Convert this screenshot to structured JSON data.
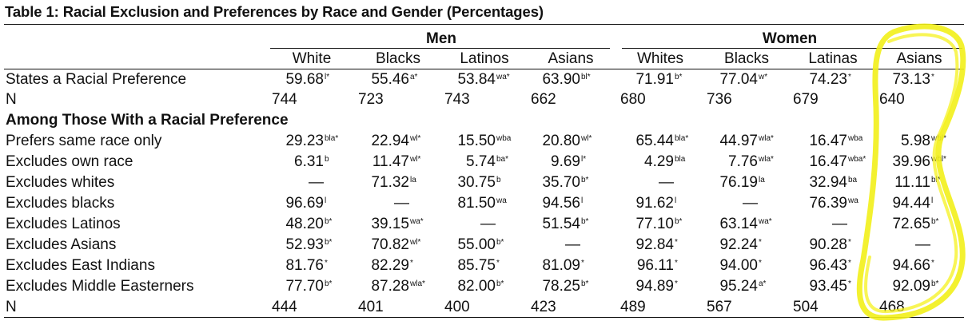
{
  "title": "Table 1: Racial Exclusion and Preferences by Race and Gender (Percentages)",
  "groups": [
    {
      "label": "Men"
    },
    {
      "label": "Women"
    }
  ],
  "columns": [
    "White",
    "Blacks",
    "Latinos",
    "Asians",
    "Whites",
    "Blacks",
    "Latinas",
    "Asians"
  ],
  "section_heading": "Among Those With a Racial Preference",
  "rows": [
    {
      "label": "States a Racial Preference",
      "cells": [
        {
          "v": "59.68",
          "s": "l*"
        },
        {
          "v": "55.46",
          "s": "a*"
        },
        {
          "v": "53.84",
          "s": "wa*"
        },
        {
          "v": "63.90",
          "s": "bl*"
        },
        {
          "v": "71.91",
          "s": "b*"
        },
        {
          "v": "77.04",
          "s": "w*"
        },
        {
          "v": "74.23",
          "s": "*"
        },
        {
          "v": "73.13",
          "s": "*"
        }
      ]
    },
    {
      "label": "N",
      "plain": true,
      "cells": [
        {
          "v": "744",
          "s": ""
        },
        {
          "v": "723",
          "s": ""
        },
        {
          "v": "743",
          "s": ""
        },
        {
          "v": "662",
          "s": ""
        },
        {
          "v": "680",
          "s": ""
        },
        {
          "v": "736",
          "s": ""
        },
        {
          "v": "679",
          "s": ""
        },
        {
          "v": "640",
          "s": ""
        }
      ]
    },
    {
      "label": "Prefers same race only",
      "cells": [
        {
          "v": "29.23",
          "s": "bla*"
        },
        {
          "v": "22.94",
          "s": "wl*"
        },
        {
          "v": "15.50",
          "s": "wba"
        },
        {
          "v": "20.80",
          "s": "wl*"
        },
        {
          "v": "65.44",
          "s": "bla*"
        },
        {
          "v": "44.97",
          "s": "wla*"
        },
        {
          "v": "16.47",
          "s": "wba"
        },
        {
          "v": "5.98",
          "s": "wbl*"
        }
      ]
    },
    {
      "label": "Excludes own race",
      "cells": [
        {
          "v": "6.31",
          "s": "b"
        },
        {
          "v": "11.47",
          "s": "wl*"
        },
        {
          "v": "5.74",
          "s": "ba*"
        },
        {
          "v": "9.69",
          "s": "l*"
        },
        {
          "v": "4.29",
          "s": "bla"
        },
        {
          "v": "7.76",
          "s": "wla*"
        },
        {
          "v": "16.47",
          "s": "wba*"
        },
        {
          "v": "39.96",
          "s": "wbl*"
        }
      ]
    },
    {
      "label": "Excludes whites",
      "cells": [
        {
          "v": "—",
          "s": ""
        },
        {
          "v": "71.32",
          "s": "la"
        },
        {
          "v": "30.75",
          "s": "b"
        },
        {
          "v": "35.70",
          "s": "b*"
        },
        {
          "v": "—",
          "s": ""
        },
        {
          "v": "76.19",
          "s": "la"
        },
        {
          "v": "32.94",
          "s": "ba"
        },
        {
          "v": "11.11",
          "s": "bl*"
        }
      ]
    },
    {
      "label": "Excludes blacks",
      "cells": [
        {
          "v": "96.69",
          "s": "l"
        },
        {
          "v": "—",
          "s": ""
        },
        {
          "v": "81.50",
          "s": "wa"
        },
        {
          "v": "94.56",
          "s": "l"
        },
        {
          "v": "91.62",
          "s": "l"
        },
        {
          "v": "—",
          "s": ""
        },
        {
          "v": "76.39",
          "s": "wa"
        },
        {
          "v": "94.44",
          "s": "l"
        }
      ]
    },
    {
      "label": "Excludes Latinos",
      "cells": [
        {
          "v": "48.20",
          "s": "b*"
        },
        {
          "v": "39.15",
          "s": "wa*"
        },
        {
          "v": "—",
          "s": ""
        },
        {
          "v": "51.54",
          "s": "b*"
        },
        {
          "v": "77.10",
          "s": "b*"
        },
        {
          "v": "63.14",
          "s": "wa*"
        },
        {
          "v": "—",
          "s": ""
        },
        {
          "v": "72.65",
          "s": "b*"
        }
      ]
    },
    {
      "label": "Excludes Asians",
      "cells": [
        {
          "v": "52.93",
          "s": "b*"
        },
        {
          "v": "70.82",
          "s": "wl*"
        },
        {
          "v": "55.00",
          "s": "b*"
        },
        {
          "v": "—",
          "s": ""
        },
        {
          "v": "92.84",
          "s": "*"
        },
        {
          "v": "92.24",
          "s": "*"
        },
        {
          "v": "90.28",
          "s": "*"
        },
        {
          "v": "—",
          "s": ""
        }
      ]
    },
    {
      "label": "Excludes East Indians",
      "cells": [
        {
          "v": "81.76",
          "s": "*"
        },
        {
          "v": "82.29",
          "s": "*"
        },
        {
          "v": "85.75",
          "s": "*"
        },
        {
          "v": "81.09",
          "s": "*"
        },
        {
          "v": "96.11",
          "s": "*"
        },
        {
          "v": "94.00",
          "s": "*"
        },
        {
          "v": "96.43",
          "s": "*"
        },
        {
          "v": "94.66",
          "s": "*"
        }
      ]
    },
    {
      "label": "Excludes Middle Easterners",
      "cells": [
        {
          "v": "77.70",
          "s": "b*"
        },
        {
          "v": "87.28",
          "s": "wla*"
        },
        {
          "v": "82.00",
          "s": "b*"
        },
        {
          "v": "78.25",
          "s": "b*"
        },
        {
          "v": "94.89",
          "s": "*"
        },
        {
          "v": "95.24",
          "s": "a*"
        },
        {
          "v": "93.45",
          "s": "*"
        },
        {
          "v": "92.09",
          "s": "b*"
        }
      ]
    },
    {
      "label": "N",
      "plain": true,
      "cells": [
        {
          "v": "444",
          "s": ""
        },
        {
          "v": "401",
          "s": ""
        },
        {
          "v": "400",
          "s": ""
        },
        {
          "v": "423",
          "s": ""
        },
        {
          "v": "489",
          "s": ""
        },
        {
          "v": "567",
          "s": ""
        },
        {
          "v": "504",
          "s": ""
        },
        {
          "v": "468",
          "s": ""
        }
      ]
    }
  ],
  "annotation": {
    "shape": "hand-drawn-ellipse",
    "color": "#f2ef1a",
    "marks_column": "Asians (Women)"
  }
}
